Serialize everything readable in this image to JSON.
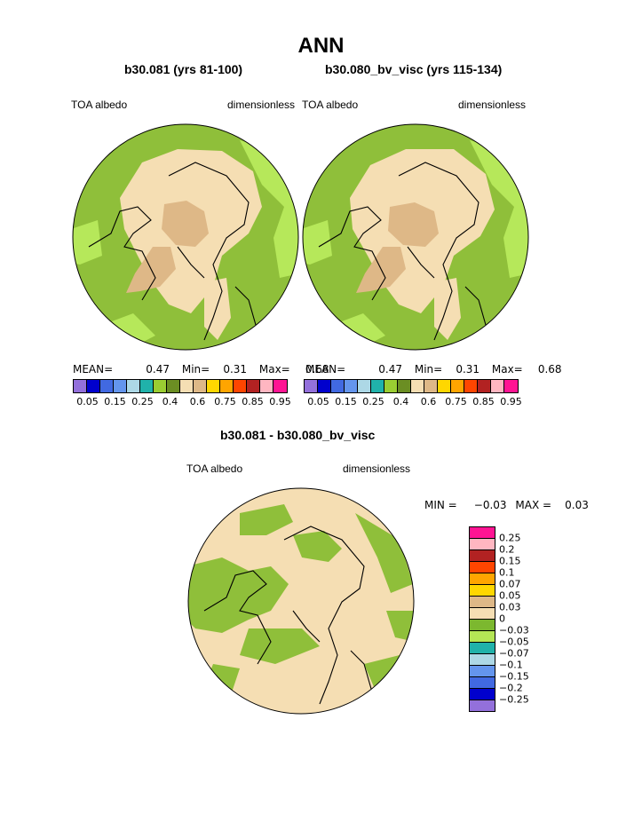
{
  "title": "ANN",
  "panels": [
    {
      "subtitle": "b30.081 (yrs 81-100)",
      "left_label": "TOA albedo",
      "right_label": "dimensionless",
      "stats": {
        "mean_label": "MEAN=",
        "mean": "0.47",
        "min_label": "Min=",
        "min": "0.31",
        "max_label": "Max=",
        "max": "0.68"
      }
    },
    {
      "subtitle": "b30.080_bv_visc (yrs 115-134)",
      "left_label": "TOA albedo",
      "right_label": "dimensionless",
      "stats": {
        "mean_label": "MEAN=",
        "mean": "0.47",
        "min_label": "Min=",
        "min": "0.31",
        "max_label": "Max=",
        "max": "0.68"
      }
    }
  ],
  "colorbar_top": {
    "colors": [
      "#9370db",
      "#0000cd",
      "#4169e1",
      "#6495ed",
      "#add8e6",
      "#20b2aa",
      "#9acd32",
      "#6b8e23",
      "#f5deb3",
      "#deb887",
      "#ffd700",
      "#ffa500",
      "#ff4500",
      "#b22222",
      "#ffb6c1",
      "#ff1493"
    ],
    "labels": [
      "0.05",
      "0.15",
      "0.25",
      "0.4",
      "0.6",
      "0.75",
      "0.85",
      "0.95"
    ]
  },
  "diff": {
    "subtitle": "b30.081 - b30.080_bv_visc",
    "left_label": "TOA albedo",
    "right_label": "dimensionless",
    "stats": {
      "min_label": "MIN =",
      "min": "−0.03",
      "max_label": "MAX =",
      "max": "0.03"
    },
    "colorbar": {
      "colors": [
        "#ff1493",
        "#ffb6c1",
        "#b22222",
        "#ff4500",
        "#ffa500",
        "#ffd700",
        "#deb887",
        "#f5deb3",
        "#7cb82f",
        "#b5e655",
        "#20b2aa",
        "#add8e6",
        "#6495ed",
        "#4169e1",
        "#0000cd",
        "#9370db"
      ],
      "labels": [
        "0.25",
        "0.2",
        "0.15",
        "0.1",
        "0.07",
        "0.05",
        "0.03",
        "0",
        "−0.03",
        "−0.05",
        "−0.07",
        "−0.1",
        "−0.15",
        "−0.2",
        "−0.25"
      ]
    }
  },
  "map_colors": {
    "ocean_green": "#8fbf3a",
    "light_green": "#b6e85a",
    "wheat": "#f5deb3",
    "tan": "#deb887",
    "diff_green": "#8fbf3a",
    "diff_wheat": "#f5deb3"
  }
}
